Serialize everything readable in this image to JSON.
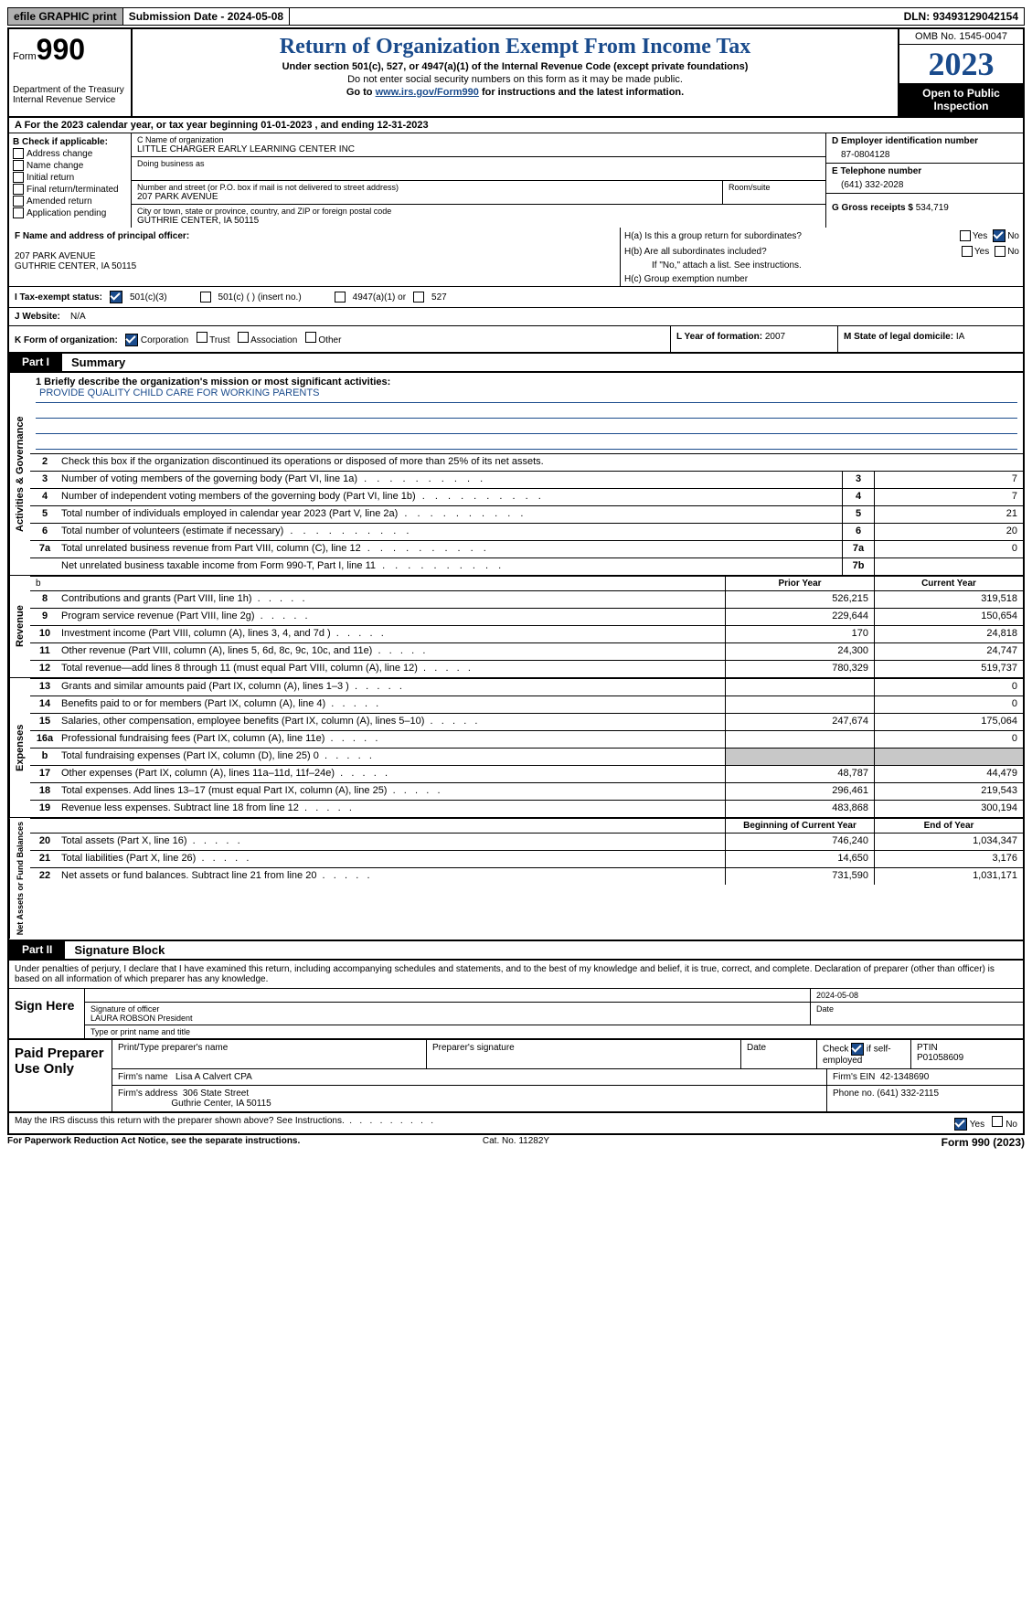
{
  "colors": {
    "link": "#1a4b8c",
    "shade": "#c8c8c8",
    "topbar_grey": "#b0b0b0"
  },
  "topbar": {
    "efile": "efile GRAPHIC print",
    "submission": "Submission Date - 2024-05-08",
    "dln": "DLN: 93493129042154"
  },
  "header": {
    "form_label": "Form",
    "form_num": "990",
    "dept": "Department of the Treasury",
    "irs": "Internal Revenue Service",
    "title": "Return of Organization Exempt From Income Tax",
    "sub": "Under section 501(c), 527, or 4947(a)(1) of the Internal Revenue Code (except private foundations)",
    "sub2": "Do not enter social security numbers on this form as it may be made public.",
    "goto_pre": "Go to ",
    "goto_link": "www.irs.gov/Form990",
    "goto_post": " for instructions and the latest information.",
    "omb": "OMB No. 1545-0047",
    "year": "2023",
    "open": "Open to Public Inspection"
  },
  "row_a": "A For the 2023 calendar year, or tax year beginning 01-01-2023    , and ending 12-31-2023",
  "box_b": {
    "label": "B Check if applicable:",
    "items": [
      "Address change",
      "Name change",
      "Initial return",
      "Final return/terminated",
      "Amended return",
      "Application pending"
    ]
  },
  "box_c": {
    "name_lbl": "C Name of organization",
    "name": "LITTLE CHARGER EARLY LEARNING CENTER INC",
    "dba_lbl": "Doing business as",
    "addr_lbl": "Number and street (or P.O. box if mail is not delivered to street address)",
    "room_lbl": "Room/suite",
    "addr": "207 PARK AVENUE",
    "city_lbl": "City or town, state or province, country, and ZIP or foreign postal code",
    "city": "GUTHRIE CENTER, IA   50115"
  },
  "box_d": {
    "lbl": "D Employer identification number",
    "val": "87-0804128"
  },
  "box_e": {
    "lbl": "E Telephone number",
    "val": "(641) 332-2028"
  },
  "box_g": {
    "lbl": "G Gross receipts $",
    "val": "534,719"
  },
  "box_f": {
    "lbl": "F  Name and address of principal officer:",
    "l1": "",
    "l2": "207 PARK AVENUE",
    "l3": "GUTHRIE CENTER, IA  50115"
  },
  "box_h": {
    "ha": "H(a)  Is this a group return for subordinates?",
    "hb": "H(b)  Are all subordinates included?",
    "hb_note": "If \"No,\" attach a list. See instructions.",
    "hc": "H(c)  Group exemption number",
    "yes": "Yes",
    "no": "No"
  },
  "row_i": {
    "lbl": "I   Tax-exempt status:",
    "o1": "501(c)(3)",
    "o2": "501(c) (  ) (insert no.)",
    "o3": "4947(a)(1) or",
    "o4": "527"
  },
  "row_j": {
    "lbl": "J   Website:",
    "val": "N/A"
  },
  "row_k": {
    "lbl": "K Form of organization:",
    "opts": [
      "Corporation",
      "Trust",
      "Association",
      "Other"
    ],
    "l_lbl": "L Year of formation:",
    "l_val": "2007",
    "m_lbl": "M State of legal domicile:",
    "m_val": "IA"
  },
  "part1": {
    "tag": "Part I",
    "title": "Summary"
  },
  "vlabels": {
    "gov": "Activities & Governance",
    "rev": "Revenue",
    "exp": "Expenses",
    "net": "Net Assets or Fund Balances"
  },
  "mission": {
    "lbl": "1   Briefly describe the organization's mission or most significant activities:",
    "text": "PROVIDE QUALITY CHILD CARE FOR WORKING PARENTS"
  },
  "gov_lines": {
    "l2": "Check this box       if the organization discontinued its operations or disposed of more than 25% of its net assets.",
    "l3": {
      "n": "3",
      "d": "Number of voting members of the governing body (Part VI, line 1a)",
      "r": "3",
      "v": "7"
    },
    "l4": {
      "n": "4",
      "d": "Number of independent voting members of the governing body (Part VI, line 1b)",
      "r": "4",
      "v": "7"
    },
    "l5": {
      "n": "5",
      "d": "Total number of individuals employed in calendar year 2023 (Part V, line 2a)",
      "r": "5",
      "v": "21"
    },
    "l6": {
      "n": "6",
      "d": "Total number of volunteers (estimate if necessary)",
      "r": "6",
      "v": "20"
    },
    "l7a": {
      "n": "7a",
      "d": "Total unrelated business revenue from Part VIII, column (C), line 12",
      "r": "7a",
      "v": "0"
    },
    "l7b": {
      "n": "",
      "d": "Net unrelated business taxable income from Form 990-T, Part I, line 11",
      "r": "7b",
      "v": ""
    }
  },
  "col_hdrs": {
    "prior": "Prior Year",
    "current": "Current Year",
    "beg": "Beginning of Current Year",
    "end": "End of Year"
  },
  "rev_lines": [
    {
      "n": "8",
      "d": "Contributions and grants (Part VIII, line 1h)",
      "p": "526,215",
      "c": "319,518"
    },
    {
      "n": "9",
      "d": "Program service revenue (Part VIII, line 2g)",
      "p": "229,644",
      "c": "150,654"
    },
    {
      "n": "10",
      "d": "Investment income (Part VIII, column (A), lines 3, 4, and 7d )",
      "p": "170",
      "c": "24,818"
    },
    {
      "n": "11",
      "d": "Other revenue (Part VIII, column (A), lines 5, 6d, 8c, 9c, 10c, and 11e)",
      "p": "24,300",
      "c": "24,747"
    },
    {
      "n": "12",
      "d": "Total revenue—add lines 8 through 11 (must equal Part VIII, column (A), line 12)",
      "p": "780,329",
      "c": "519,737"
    }
  ],
  "exp_lines": [
    {
      "n": "13",
      "d": "Grants and similar amounts paid (Part IX, column (A), lines 1–3 )",
      "p": "",
      "c": "0"
    },
    {
      "n": "14",
      "d": "Benefits paid to or for members (Part IX, column (A), line 4)",
      "p": "",
      "c": "0"
    },
    {
      "n": "15",
      "d": "Salaries, other compensation, employee benefits (Part IX, column (A), lines 5–10)",
      "p": "247,674",
      "c": "175,064"
    },
    {
      "n": "16a",
      "d": "Professional fundraising fees (Part IX, column (A), line 11e)",
      "p": "",
      "c": "0"
    },
    {
      "n": "b",
      "d": "Total fundraising expenses (Part IX, column (D), line 25) 0",
      "p": "shade",
      "c": "shade"
    },
    {
      "n": "17",
      "d": "Other expenses (Part IX, column (A), lines 11a–11d, 11f–24e)",
      "p": "48,787",
      "c": "44,479"
    },
    {
      "n": "18",
      "d": "Total expenses. Add lines 13–17 (must equal Part IX, column (A), line 25)",
      "p": "296,461",
      "c": "219,543"
    },
    {
      "n": "19",
      "d": "Revenue less expenses. Subtract line 18 from line 12",
      "p": "483,868",
      "c": "300,194"
    }
  ],
  "net_lines": [
    {
      "n": "20",
      "d": "Total assets (Part X, line 16)",
      "p": "746,240",
      "c": "1,034,347"
    },
    {
      "n": "21",
      "d": "Total liabilities (Part X, line 26)",
      "p": "14,650",
      "c": "3,176"
    },
    {
      "n": "22",
      "d": "Net assets or fund balances. Subtract line 21 from line 20",
      "p": "731,590",
      "c": "1,031,171"
    }
  ],
  "part2": {
    "tag": "Part II",
    "title": "Signature Block"
  },
  "sig_text": "Under penalties of perjury, I declare that I have examined this return, including accompanying schedules and statements, and to the best of my knowledge and belief, it is true, correct, and complete. Declaration of preparer (other than officer) is based on all information of which preparer has any knowledge.",
  "sign_here": {
    "lbl": "Sign Here",
    "date": "2024-05-08",
    "sig_lbl": "Signature of officer",
    "name": "LAURA ROBSON  President",
    "type_lbl": "Type or print name and title",
    "date_lbl": "Date"
  },
  "paid_prep": {
    "lbl": "Paid Preparer Use Only",
    "h1": "Print/Type preparer's name",
    "h2": "Preparer's signature",
    "h3": "Date",
    "h4_pre": "Check",
    "h4_post": "if self-employed",
    "ptin_lbl": "PTIN",
    "ptin": "P01058609",
    "firm_name_lbl": "Firm's name",
    "firm_name": "Lisa A Calvert CPA",
    "firm_ein_lbl": "Firm's EIN",
    "firm_ein": "42-1348690",
    "firm_addr_lbl": "Firm's address",
    "firm_addr1": "306 State Street",
    "firm_addr2": "Guthrie Center, IA  50115",
    "phone_lbl": "Phone no.",
    "phone": "(641) 332-2115"
  },
  "irs_discuss": {
    "q": "May the IRS discuss this return with the preparer shown above? See Instructions.",
    "yes": "Yes",
    "no": "No"
  },
  "footer": {
    "pra": "For Paperwork Reduction Act Notice, see the separate instructions.",
    "cat": "Cat. No. 11282Y",
    "form": "Form 990 (2023)"
  }
}
